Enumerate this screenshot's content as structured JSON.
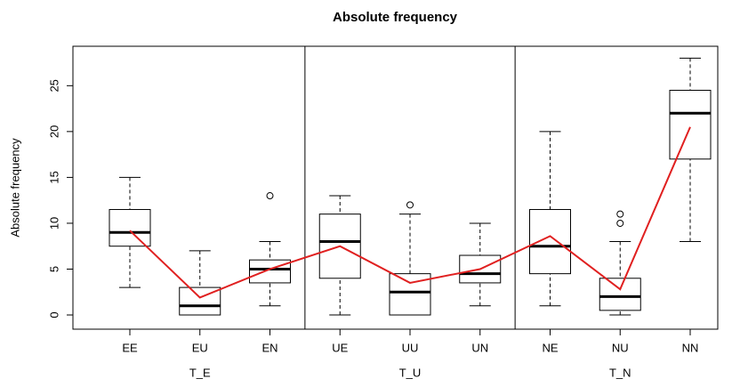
{
  "chart_data": {
    "type": "boxplot",
    "title": "Absolute frequency",
    "y_label": "Absolute frequency",
    "categories": [
      "EE",
      "EU",
      "EN",
      "UE",
      "UU",
      "UN",
      "NE",
      "NU",
      "NN"
    ],
    "groups": [
      "T_E",
      "T_U",
      "T_N"
    ],
    "min": [
      3,
      0,
      1,
      0,
      0,
      1,
      1,
      0,
      8
    ],
    "q1": [
      7.5,
      0,
      3.5,
      4,
      0,
      3.5,
      4.5,
      0.5,
      17
    ],
    "median": [
      9,
      1,
      5,
      8,
      2.5,
      4.5,
      7.5,
      2,
      22
    ],
    "q3": [
      11.5,
      3,
      6,
      11,
      4.5,
      6.5,
      11.5,
      4,
      24.5
    ],
    "max": [
      15,
      7,
      8,
      13,
      11,
      10,
      20,
      8,
      28
    ],
    "outliers": [
      [],
      [],
      [
        13
      ],
      [],
      [
        12
      ],
      [],
      [],
      [
        10,
        11
      ],
      []
    ],
    "means": [
      9.2,
      1.9,
      5,
      7.5,
      3.5,
      5,
      8.6,
      2.8,
      20.5
    ],
    "box_color": "#000000",
    "mean_color": "#e02020",
    "ylim": [
      -1.55,
      29.3
    ],
    "yticks": [
      0,
      5,
      10,
      15,
      20,
      25
    ]
  }
}
